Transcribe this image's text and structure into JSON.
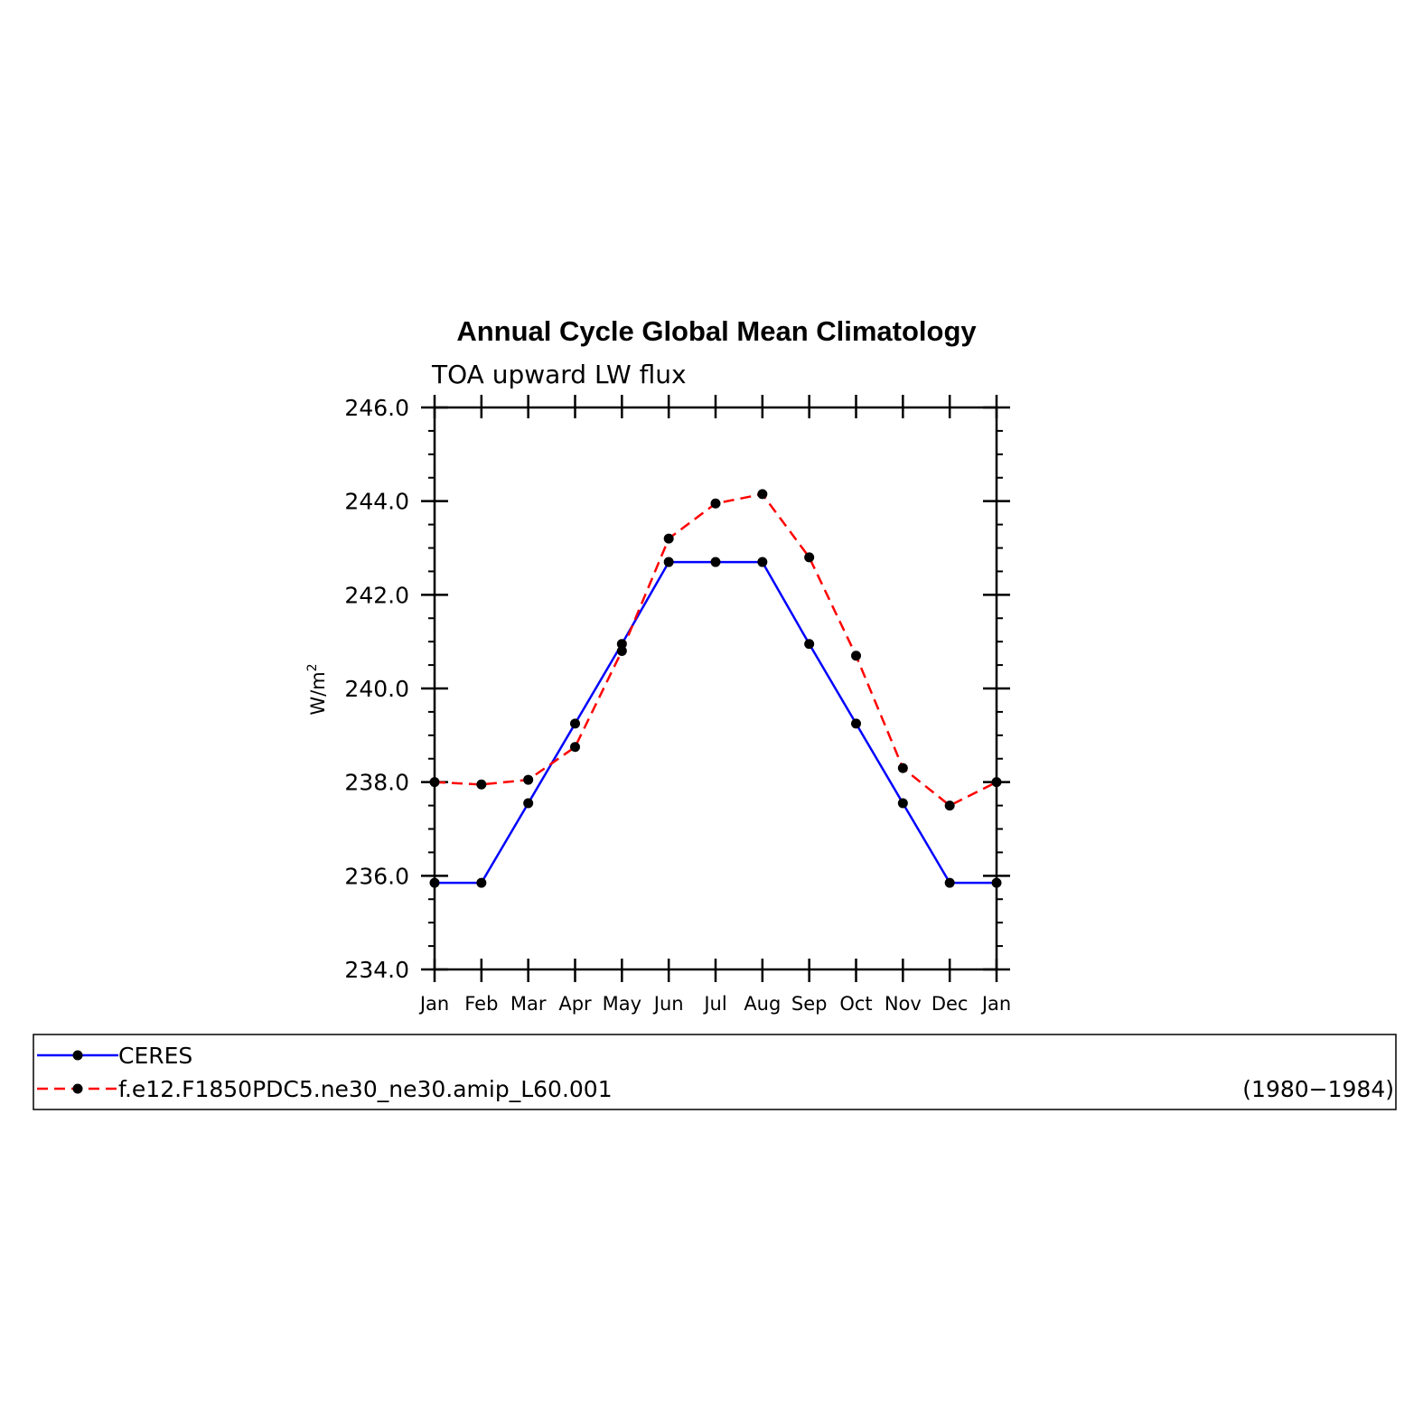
{
  "chart_data": {
    "type": "line",
    "title": "Annual Cycle Global Mean Climatology",
    "subtitle": "TOA upward LW flux",
    "ylabel": "W/m",
    "ylabel_superscript": "2",
    "ylim": [
      234.0,
      246.0
    ],
    "yticks": [
      "234.0",
      "236.0",
      "238.0",
      "240.0",
      "242.0",
      "244.0",
      "246.0"
    ],
    "categories": [
      "Jan",
      "Feb",
      "Mar",
      "Apr",
      "May",
      "Jun",
      "Jul",
      "Aug",
      "Sep",
      "Oct",
      "Nov",
      "Dec",
      "Jan"
    ],
    "grid": false,
    "legend_position": "bottom",
    "series": [
      {
        "name": "CERES",
        "color": "#0000ff",
        "dash": "solid",
        "marker": "dot",
        "values": [
          235.85,
          235.85,
          237.55,
          239.25,
          240.95,
          242.7,
          242.7,
          242.7,
          240.95,
          239.25,
          237.55,
          235.85,
          235.85
        ]
      },
      {
        "name": "f.e12.F1850PDC5.ne30_ne30.amip_L60.001",
        "color": "#ff0000",
        "dash": "dashed",
        "marker": "dot",
        "values": [
          238.0,
          237.95,
          238.05,
          238.75,
          240.8,
          243.2,
          243.95,
          244.15,
          242.8,
          240.7,
          238.3,
          237.5,
          238.0
        ]
      }
    ],
    "annotation": "(1980−1984)"
  }
}
